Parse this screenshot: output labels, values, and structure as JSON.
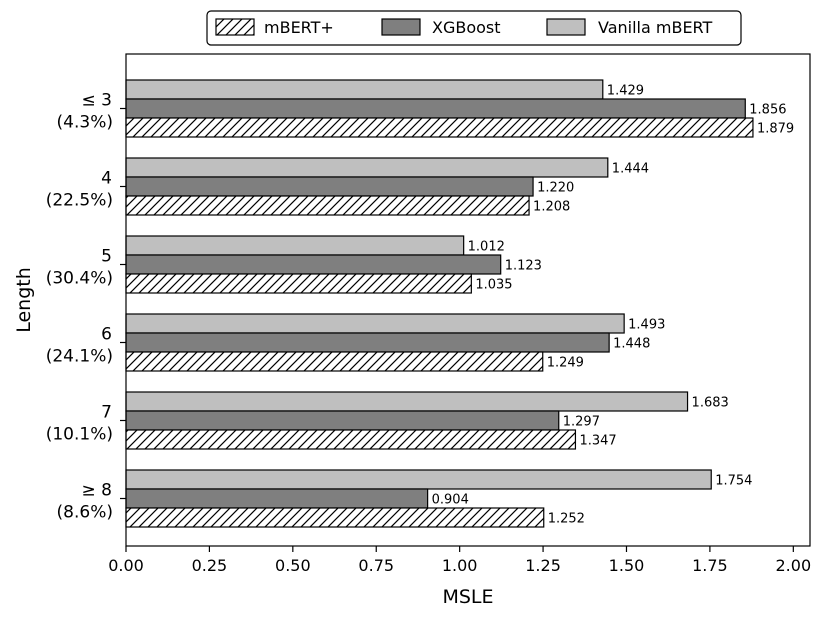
{
  "chart_data": {
    "type": "bar",
    "orientation": "horizontal",
    "xlabel": "MSLE",
    "ylabel": "Length",
    "xlim": [
      0,
      2.05
    ],
    "xticks": [
      "0.00",
      "0.25",
      "0.50",
      "0.75",
      "1.00",
      "1.25",
      "1.50",
      "1.75",
      "2.00"
    ],
    "categories": [
      {
        "label": "≤ 3",
        "share": "(4.3%)"
      },
      {
        "label": "4",
        "share": "(22.5%)"
      },
      {
        "label": "5",
        "share": "(30.4%)"
      },
      {
        "label": "6",
        "share": "(24.1%)"
      },
      {
        "label": "7",
        "share": "(10.1%)"
      },
      {
        "label": "≥ 8",
        "share": "(8.6%)"
      }
    ],
    "series": [
      {
        "name": "Vanilla mBERT",
        "color": "#bfbfbf",
        "hatch": false,
        "values": [
          1.429,
          1.444,
          1.012,
          1.493,
          1.683,
          1.754
        ],
        "labels": [
          "1.429",
          "1.444",
          "1.012",
          "1.493",
          "1.683",
          "1.754"
        ]
      },
      {
        "name": "XGBoost",
        "color": "#7f7f7f",
        "hatch": false,
        "values": [
          1.856,
          1.22,
          1.123,
          1.448,
          1.297,
          0.904
        ],
        "labels": [
          "1.856",
          "1.220",
          "1.123",
          "1.448",
          "1.297",
          "0.904"
        ]
      },
      {
        "name": "mBERT+",
        "color": "#ffffff",
        "hatch": true,
        "values": [
          1.879,
          1.208,
          1.035,
          1.249,
          1.347,
          1.252
        ],
        "labels": [
          "1.879",
          "1.208",
          "1.035",
          "1.249",
          "1.347",
          "1.252"
        ]
      }
    ],
    "legend": {
      "position": "top-center",
      "order": [
        "mBERT+",
        "XGBoost",
        "Vanilla mBERT"
      ]
    }
  }
}
